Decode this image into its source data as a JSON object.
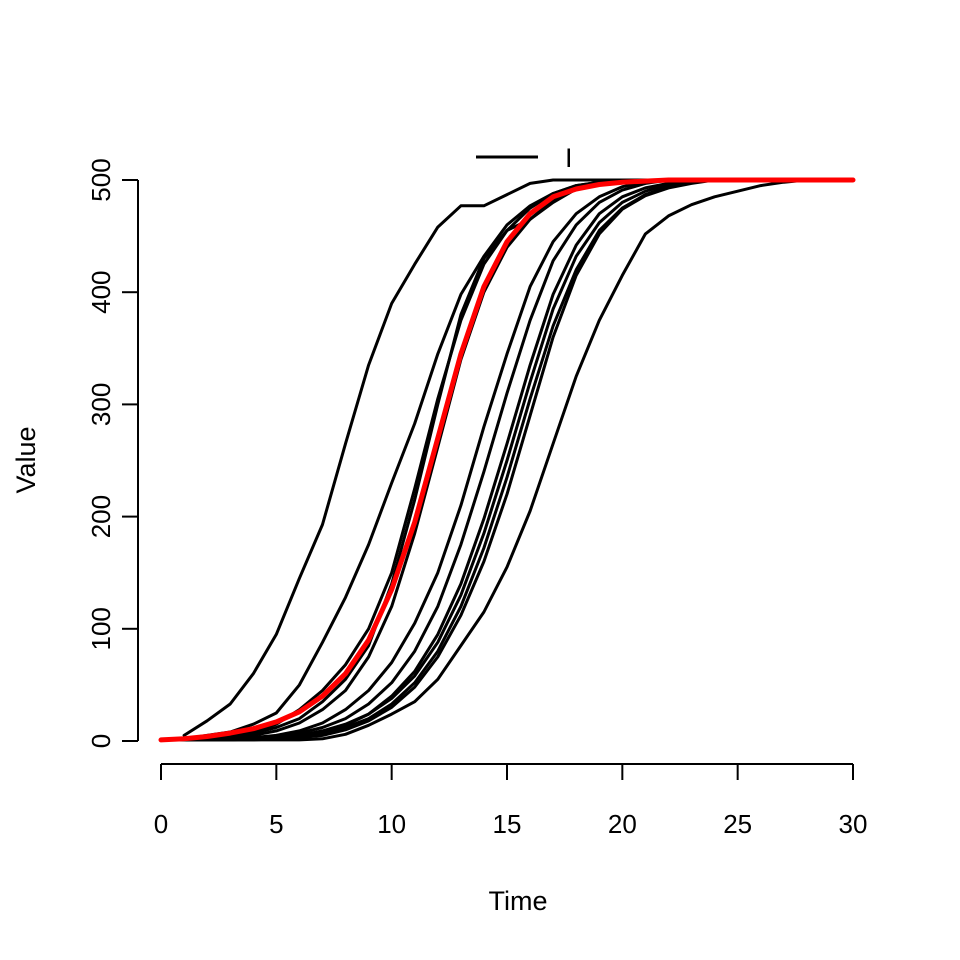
{
  "chart_data": {
    "type": "line",
    "title": "",
    "xlabel": "Time",
    "ylabel": "Value",
    "xlim": [
      0,
      30
    ],
    "ylim": [
      0,
      500
    ],
    "x_ticks": [
      "0",
      "5",
      "10",
      "15",
      "20",
      "25",
      "30"
    ],
    "y_ticks": [
      "0",
      "100",
      "200",
      "300",
      "400",
      "500"
    ],
    "grid": false,
    "legend": {
      "placement": "top-center",
      "entries": [
        {
          "label": "I",
          "color": "#000000"
        }
      ]
    },
    "colors": {
      "simulations": "#000000",
      "mean": "#ff0000"
    },
    "series": [
      {
        "color": "#000000",
        "x": [
          1,
          2,
          3,
          4,
          5,
          6,
          7,
          8,
          9,
          10,
          11,
          12,
          13,
          14,
          15,
          16,
          17,
          18,
          19,
          20,
          21,
          22,
          23,
          24,
          25,
          26,
          27,
          28,
          29,
          30
        ],
        "y": [
          5,
          18,
          33,
          60,
          95,
          145,
          193,
          265,
          335,
          390,
          425,
          458,
          477,
          477,
          487,
          497,
          500,
          500,
          500,
          500,
          500,
          500,
          500,
          500,
          500,
          500,
          500,
          500,
          500,
          500
        ]
      },
      {
        "color": "#000000",
        "x": [
          0,
          1,
          2,
          3,
          4,
          5,
          6,
          7,
          8,
          9,
          10,
          11,
          12,
          13,
          14,
          15,
          16,
          17,
          18,
          19,
          20,
          21,
          22,
          23,
          24,
          25,
          26,
          27,
          28,
          29,
          30
        ],
        "y": [
          1,
          2,
          5,
          8,
          15,
          25,
          50,
          88,
          128,
          175,
          230,
          283,
          345,
          398,
          432,
          460,
          477,
          488,
          495,
          498,
          500,
          500,
          500,
          500,
          500,
          500,
          500,
          500,
          500,
          500,
          500
        ]
      },
      {
        "color": "#000000",
        "x": [
          0,
          1,
          2,
          3,
          4,
          5,
          6,
          7,
          8,
          9,
          10,
          11,
          12,
          13,
          14,
          15,
          16,
          17,
          18,
          19,
          20,
          21,
          22,
          23,
          24,
          25,
          26,
          27,
          28,
          29,
          30
        ],
        "y": [
          1,
          1,
          2,
          4,
          7,
          12,
          20,
          35,
          55,
          85,
          140,
          215,
          300,
          380,
          430,
          455,
          465,
          480,
          492,
          497,
          500,
          500,
          500,
          500,
          500,
          500,
          500,
          500,
          500,
          500,
          500
        ]
      },
      {
        "color": "#000000",
        "x": [
          0,
          1,
          2,
          3,
          4,
          5,
          6,
          7,
          8,
          9,
          10,
          11,
          12,
          13,
          14,
          15,
          16,
          17,
          18,
          19,
          20,
          21,
          22,
          23,
          24,
          25,
          26,
          27,
          28,
          29,
          30
        ],
        "y": [
          1,
          1,
          2,
          4,
          8,
          15,
          28,
          45,
          68,
          100,
          150,
          225,
          305,
          375,
          425,
          455,
          475,
          488,
          495,
          498,
          500,
          500,
          500,
          500,
          500,
          500,
          500,
          500,
          500,
          500,
          500
        ]
      },
      {
        "color": "#000000",
        "x": [
          0,
          1,
          2,
          3,
          4,
          5,
          6,
          7,
          8,
          9,
          10,
          11,
          12,
          13,
          14,
          15,
          16,
          17,
          18,
          19,
          20,
          21,
          22,
          23,
          24,
          25,
          26,
          27,
          28,
          29,
          30
        ],
        "y": [
          1,
          1,
          2,
          3,
          5,
          9,
          16,
          28,
          45,
          75,
          120,
          185,
          262,
          340,
          400,
          440,
          465,
          482,
          492,
          497,
          500,
          500,
          500,
          500,
          500,
          500,
          500,
          500,
          500,
          500,
          500
        ]
      },
      {
        "color": "#000000",
        "x": [
          0,
          1,
          2,
          3,
          4,
          5,
          6,
          7,
          8,
          9,
          10,
          11,
          12,
          13,
          14,
          15,
          16,
          17,
          18,
          19,
          20,
          21,
          22,
          23,
          24,
          25,
          26,
          27,
          28,
          29,
          30
        ],
        "y": [
          1,
          1,
          1,
          2,
          3,
          5,
          9,
          16,
          28,
          45,
          70,
          105,
          150,
          210,
          280,
          345,
          405,
          445,
          470,
          485,
          494,
          498,
          500,
          500,
          500,
          500,
          500,
          500,
          500,
          500,
          500
        ]
      },
      {
        "color": "#000000",
        "x": [
          0,
          1,
          2,
          3,
          4,
          5,
          6,
          7,
          8,
          9,
          10,
          11,
          12,
          13,
          14,
          15,
          16,
          17,
          18,
          19,
          20,
          21,
          22,
          23,
          24,
          25,
          26,
          27,
          28,
          29,
          30
        ],
        "y": [
          1,
          1,
          1,
          2,
          3,
          4,
          7,
          12,
          20,
          33,
          52,
          80,
          120,
          175,
          240,
          310,
          375,
          428,
          460,
          480,
          491,
          497,
          500,
          500,
          500,
          500,
          500,
          500,
          500,
          500,
          500
        ]
      },
      {
        "color": "#000000",
        "x": [
          0,
          1,
          2,
          3,
          4,
          5,
          6,
          7,
          8,
          9,
          10,
          11,
          12,
          13,
          14,
          15,
          16,
          17,
          18,
          19,
          20,
          21,
          22,
          23,
          24,
          25,
          26,
          27,
          28,
          29,
          30
        ],
        "y": [
          1,
          1,
          1,
          1,
          2,
          3,
          5,
          9,
          15,
          24,
          38,
          58,
          88,
          130,
          185,
          250,
          320,
          385,
          432,
          462,
          480,
          490,
          496,
          499,
          500,
          500,
          500,
          500,
          500,
          500,
          500
        ]
      },
      {
        "color": "#000000",
        "x": [
          0,
          1,
          2,
          3,
          4,
          5,
          6,
          7,
          8,
          9,
          10,
          11,
          12,
          13,
          14,
          15,
          16,
          17,
          18,
          19,
          20,
          21,
          22,
          23,
          24,
          25,
          26,
          27,
          28,
          29,
          30
        ],
        "y": [
          1,
          1,
          1,
          1,
          2,
          2,
          4,
          7,
          12,
          20,
          33,
          52,
          80,
          120,
          172,
          235,
          305,
          370,
          420,
          455,
          475,
          487,
          494,
          498,
          500,
          500,
          500,
          500,
          500,
          500,
          500
        ]
      },
      {
        "color": "#000000",
        "x": [
          0,
          1,
          2,
          3,
          4,
          5,
          6,
          7,
          8,
          9,
          10,
          11,
          12,
          13,
          14,
          15,
          16,
          17,
          18,
          19,
          20,
          21,
          22,
          23,
          24,
          25,
          26,
          27,
          28,
          29,
          30
        ],
        "y": [
          1,
          1,
          1,
          1,
          1,
          1,
          1,
          2,
          6,
          14,
          24,
          35,
          55,
          85,
          115,
          155,
          205,
          265,
          325,
          375,
          415,
          452,
          468,
          478,
          485,
          490,
          495,
          498,
          500,
          500,
          500
        ]
      },
      {
        "color": "#000000",
        "x": [
          0,
          1,
          2,
          3,
          4,
          5,
          6,
          7,
          8,
          9,
          10,
          11,
          12,
          13,
          14,
          15,
          16,
          17,
          18,
          19,
          20,
          21,
          22,
          23,
          24,
          25,
          26,
          27,
          28,
          29,
          30
        ],
        "y": [
          1,
          1,
          1,
          1,
          1,
          2,
          3,
          5,
          10,
          18,
          30,
          48,
          75,
          112,
          160,
          220,
          290,
          360,
          415,
          452,
          474,
          486,
          493,
          497,
          500,
          500,
          500,
          500,
          500,
          500,
          500
        ]
      },
      {
        "color": "#000000",
        "x": [
          0,
          1,
          2,
          3,
          4,
          5,
          6,
          7,
          8,
          9,
          10,
          11,
          12,
          13,
          14,
          15,
          16,
          17,
          18,
          19,
          20,
          21,
          22,
          23,
          24,
          25,
          26,
          27,
          28,
          29,
          30
        ],
        "y": [
          1,
          1,
          1,
          1,
          2,
          3,
          5,
          8,
          14,
          24,
          40,
          62,
          95,
          140,
          198,
          265,
          335,
          398,
          442,
          470,
          485,
          493,
          497,
          499,
          500,
          500,
          500,
          500,
          500,
          500,
          500
        ]
      },
      {
        "color": "#ff0000",
        "x": [
          0,
          1,
          2,
          3,
          4,
          5,
          6,
          7,
          8,
          9,
          10,
          11,
          12,
          13,
          14,
          15,
          16,
          17,
          18,
          19,
          20,
          21,
          22,
          23,
          24,
          25,
          26,
          27,
          28,
          29,
          30
        ],
        "y": [
          1,
          2,
          4,
          7,
          11,
          17,
          26,
          40,
          60,
          90,
          135,
          195,
          270,
          345,
          405,
          445,
          470,
          485,
          492,
          496,
          498,
          499,
          500,
          500,
          500,
          500,
          500,
          500,
          500,
          500,
          500
        ]
      }
    ]
  }
}
